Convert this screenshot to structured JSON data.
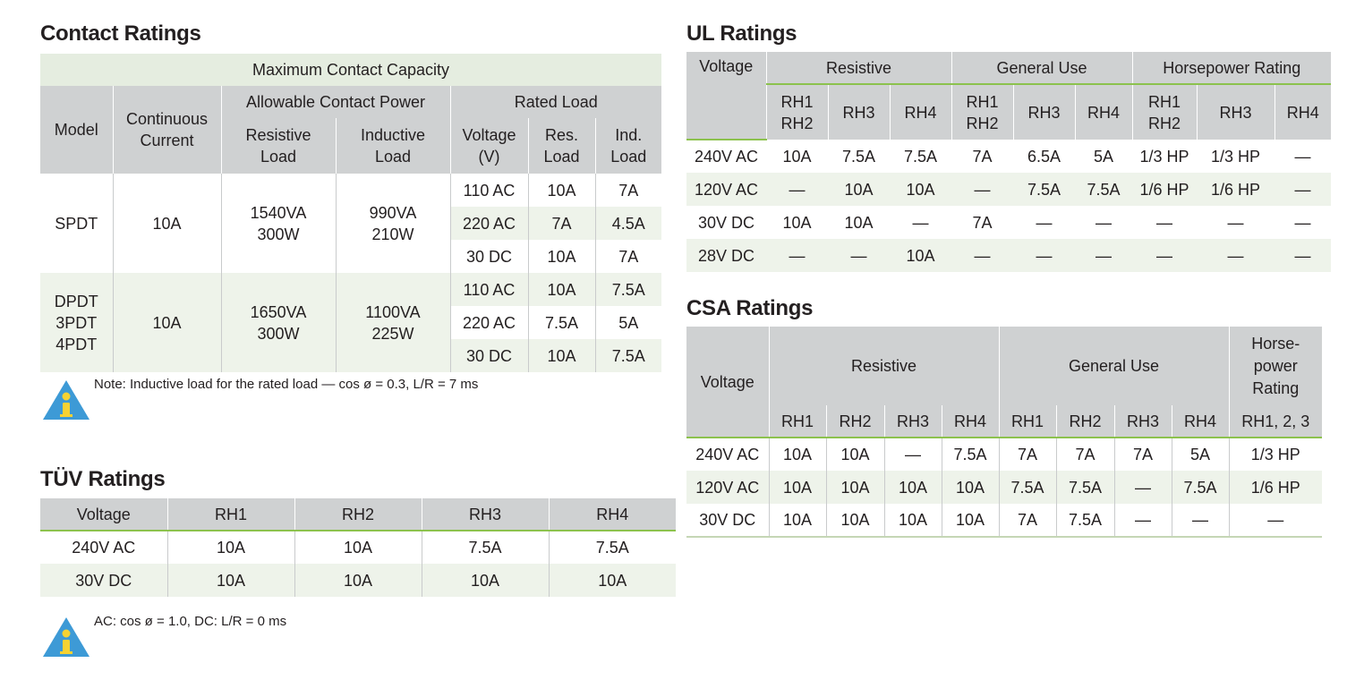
{
  "contact": {
    "title": "Contact Ratings",
    "max_capacity": "Maximum Contact Capacity",
    "model": "Model",
    "continuous_l1": "Continuous",
    "continuous_l2": "Current",
    "allowable": "Allowable Contact Power",
    "rated_load": "Rated Load",
    "resistive_l1": "Resistive",
    "resistive_l2": "Load",
    "inductive_l1": "Inductive",
    "inductive_l2": "Load",
    "voltage_l1": "Voltage",
    "voltage_l2": "(V)",
    "res_l1": "Res.",
    "res_l2": "Load",
    "ind_l1": "Ind.",
    "ind_l2": "Load",
    "groups": [
      {
        "model": [
          "SPDT"
        ],
        "current": "10A",
        "resistive": [
          "1540VA",
          "300W"
        ],
        "inductive": [
          "990VA",
          "210W"
        ],
        "rows": [
          {
            "v": "110 AC",
            "res": "10A",
            "ind": "7A"
          },
          {
            "v": "220 AC",
            "res": "7A",
            "ind": "4.5A"
          },
          {
            "v": "30 DC",
            "res": "10A",
            "ind": "7A"
          }
        ]
      },
      {
        "model": [
          "DPDT",
          "3PDT",
          "4PDT"
        ],
        "current": "10A",
        "resistive": [
          "1650VA",
          "300W"
        ],
        "inductive": [
          "1100VA",
          "225W"
        ],
        "rows": [
          {
            "v": "110 AC",
            "res": "10A",
            "ind": "7.5A"
          },
          {
            "v": "220 AC",
            "res": "7.5A",
            "ind": "5A"
          },
          {
            "v": "30 DC",
            "res": "10A",
            "ind": "7.5A"
          }
        ]
      }
    ],
    "note": "Note: Inductive load for the rated load — cos ø = 0.3, L/R = 7 ms"
  },
  "tuv": {
    "title": "TÜV Ratings",
    "headers": [
      "Voltage",
      "RH1",
      "RH2",
      "RH3",
      "RH4"
    ],
    "rows": [
      [
        "240V AC",
        "10A",
        "10A",
        "7.5A",
        "7.5A"
      ],
      [
        "30V DC",
        "10A",
        "10A",
        "10A",
        "10A"
      ]
    ],
    "note": "AC: cos ø = 1.0, DC: L/R = 0 ms"
  },
  "ul": {
    "title": "UL Ratings",
    "voltage": "Voltage",
    "groups": [
      "Resistive",
      "General Use",
      "Horsepower Rating"
    ],
    "subs": [
      [
        "RH1",
        "RH2"
      ],
      [
        "RH3"
      ],
      [
        "RH4"
      ],
      [
        "RH1",
        "RH2"
      ],
      [
        "RH3"
      ],
      [
        "RH4"
      ],
      [
        "RH1",
        "RH2"
      ],
      [
        "RH3"
      ],
      [
        "RH4"
      ]
    ],
    "rows": [
      [
        "240V AC",
        "10A",
        "7.5A",
        "7.5A",
        "7A",
        "6.5A",
        "5A",
        "1/3 HP",
        "1/3 HP",
        "—"
      ],
      [
        "120V AC",
        "—",
        "10A",
        "10A",
        "—",
        "7.5A",
        "7.5A",
        "1/6 HP",
        "1/6 HP",
        "—"
      ],
      [
        "30V DC",
        "10A",
        "10A",
        "—",
        "7A",
        "—",
        "—",
        "—",
        "—",
        "—"
      ],
      [
        "28V DC",
        "—",
        "—",
        "10A",
        "—",
        "—",
        "—",
        "—",
        "—",
        "—"
      ]
    ]
  },
  "csa": {
    "title": "CSA Ratings",
    "voltage": "Voltage",
    "resistive": "Resistive",
    "general": "General Use",
    "hp": [
      "Horse-",
      "power",
      "Rating"
    ],
    "subs": [
      "RH1",
      "RH2",
      "RH3",
      "RH4",
      "RH1",
      "RH2",
      "RH3",
      "RH4",
      "RH1, 2, 3"
    ],
    "rows": [
      [
        "240V AC",
        "10A",
        "10A",
        "—",
        "7.5A",
        "7A",
        "7A",
        "7A",
        "5A",
        "1/3 HP"
      ],
      [
        "120V AC",
        "10A",
        "10A",
        "10A",
        "10A",
        "7.5A",
        "7.5A",
        "—",
        "7.5A",
        "1/6 HP"
      ],
      [
        "30V DC",
        "10A",
        "10A",
        "10A",
        "10A",
        "7A",
        "7.5A",
        "—",
        "—",
        "—"
      ]
    ]
  }
}
